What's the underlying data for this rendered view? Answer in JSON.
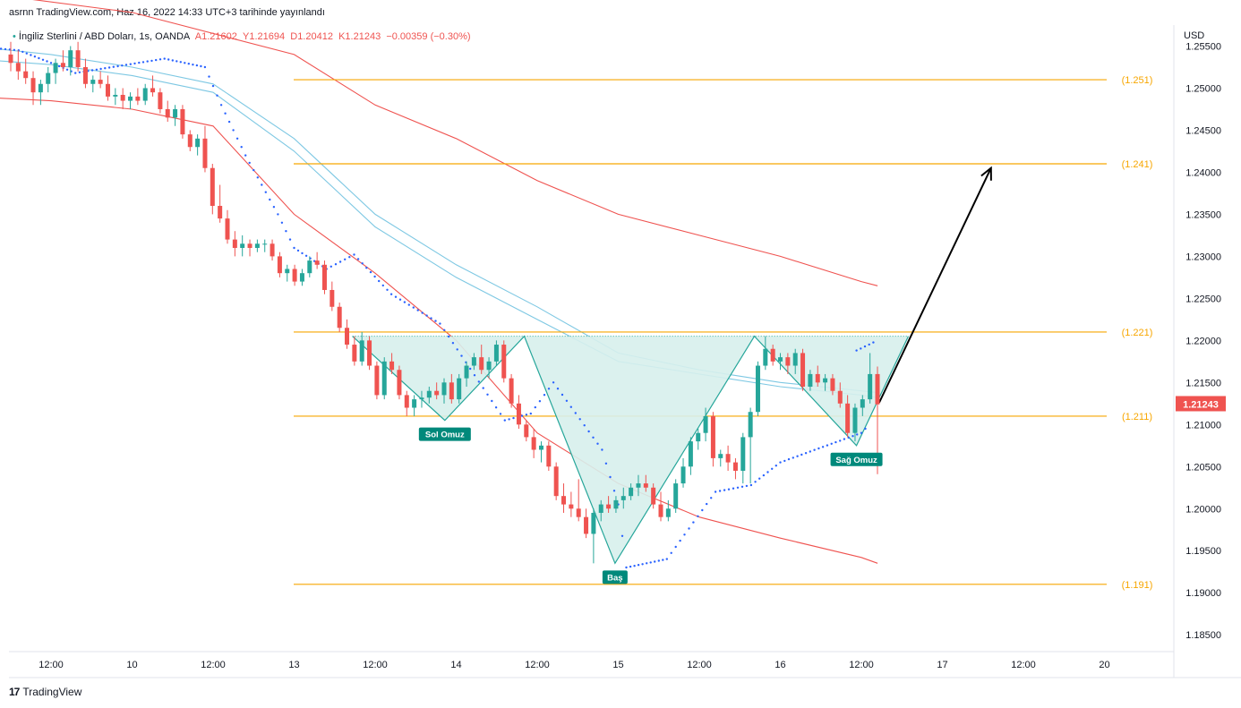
{
  "header": {
    "publish_text": "asrnn TradingView.com, Haz 16, 2022 14:33 UTC+3 tarihinde yayınlandı"
  },
  "symbol": {
    "name": "İngiliz Sterlini / ABD Doları, 1s, OANDA",
    "open": "A1.21602",
    "high": "Y1.21694",
    "low": "D1.20412",
    "close": "K1.21243",
    "change": "−0.00359 (−0.30%)"
  },
  "currency": "USD",
  "last_price": "1.21243",
  "footer": {
    "brand": "TradingView",
    "logo": "17"
  },
  "colors": {
    "up": "#26a69a",
    "down": "#ef5350",
    "level": "#f7a600",
    "ma_blue": "#7ec8e3",
    "ma_red": "#ef5350",
    "pattern_fill": "#d7efec",
    "pattern_stroke": "#26a69a",
    "sar": "#2962ff"
  },
  "chart_data": {
    "type": "candlestick",
    "y_range": [
      1.183,
      1.2575
    ],
    "y_ticks": [
      "1.25500",
      "1.25000",
      "1.24500",
      "1.24000",
      "1.23500",
      "1.23000",
      "1.22500",
      "1.22000",
      "1.21500",
      "1.21000",
      "1.20500",
      "1.20000",
      "1.19500",
      "1.19000",
      "1.18500"
    ],
    "x_ticks": [
      {
        "label": "12:00",
        "t": 0.5
      },
      {
        "label": "10",
        "t": 1.0
      },
      {
        "label": "12:00",
        "t": 1.5
      },
      {
        "label": "13",
        "t": 2.0
      },
      {
        "label": "12:00",
        "t": 2.5
      },
      {
        "label": "14",
        "t": 3.0
      },
      {
        "label": "12:00",
        "t": 3.5
      },
      {
        "label": "15",
        "t": 4.0
      },
      {
        "label": "12:00",
        "t": 4.5
      },
      {
        "label": "16",
        "t": 5.0
      },
      {
        "label": "12:00",
        "t": 5.5
      },
      {
        "label": "17",
        "t": 6.0
      },
      {
        "label": "12:00",
        "t": 6.5
      },
      {
        "label": "20",
        "t": 7.0
      }
    ],
    "levels": [
      {
        "value": 1.251,
        "label": "(1.251)"
      },
      {
        "value": 1.241,
        "label": "(1.241)"
      },
      {
        "value": 1.221,
        "label": "(1.221)"
      },
      {
        "value": 1.211,
        "label": "(1.211)"
      },
      {
        "value": 1.191,
        "label": "(1.191)"
      }
    ],
    "pattern_points": [
      {
        "t": 3.42,
        "v": 1.2204
      },
      {
        "t": 2.93,
        "v": 1.2105
      },
      {
        "t": 3.42,
        "v": 1.2205
      },
      {
        "t": 3.98,
        "v": 1.1935
      },
      {
        "t": 4.84,
        "v": 1.2205
      },
      {
        "t": 5.47,
        "v": 1.2075
      },
      {
        "t": 5.79,
        "v": 1.2205
      }
    ],
    "annotations": [
      {
        "text": "Sol Omuz",
        "t": 2.93,
        "v": 1.2105
      },
      {
        "text": "Baş",
        "t": 3.98,
        "v": 1.1935
      },
      {
        "text": "Sağ Omuz",
        "t": 5.47,
        "v": 1.2075
      }
    ],
    "target_arrow": {
      "from": {
        "t": 5.61,
        "v": 1.2126
      },
      "to": {
        "t": 6.3,
        "v": 1.2405
      }
    },
    "candles": [
      [
        1.254,
        1.2555,
        1.252,
        1.253
      ],
      [
        1.253,
        1.2545,
        1.251,
        1.252
      ],
      [
        1.252,
        1.2535,
        1.2505,
        1.2512
      ],
      [
        1.2512,
        1.252,
        1.248,
        1.2495
      ],
      [
        1.2495,
        1.251,
        1.248,
        1.2505
      ],
      [
        1.2505,
        1.2525,
        1.2495,
        1.2518
      ],
      [
        1.2518,
        1.2535,
        1.2505,
        1.253
      ],
      [
        1.253,
        1.2545,
        1.252,
        1.2525
      ],
      [
        1.2525,
        1.255,
        1.2515,
        1.2545
      ],
      [
        1.2545,
        1.2555,
        1.252,
        1.2525
      ],
      [
        1.2525,
        1.2535,
        1.25,
        1.2505
      ],
      [
        1.2505,
        1.2515,
        1.2495,
        1.251
      ],
      [
        1.251,
        1.252,
        1.25,
        1.2505
      ],
      [
        1.2505,
        1.2515,
        1.2485,
        1.249
      ],
      [
        1.249,
        1.25,
        1.248,
        1.2492
      ],
      [
        1.2492,
        1.25,
        1.2475,
        1.2485
      ],
      [
        1.2485,
        1.2495,
        1.2475,
        1.249
      ],
      [
        1.249,
        1.25,
        1.248,
        1.2485
      ],
      [
        1.2485,
        1.2505,
        1.248,
        1.25
      ],
      [
        1.25,
        1.2515,
        1.249,
        1.2495
      ],
      [
        1.2495,
        1.25,
        1.247,
        1.2475
      ],
      [
        1.2475,
        1.2485,
        1.246,
        1.2465
      ],
      [
        1.2465,
        1.248,
        1.2455,
        1.2475
      ],
      [
        1.2475,
        1.248,
        1.244,
        1.2445
      ],
      [
        1.2445,
        1.245,
        1.2425,
        1.243
      ],
      [
        1.243,
        1.2445,
        1.242,
        1.244
      ],
      [
        1.244,
        1.2455,
        1.24,
        1.2405
      ],
      [
        1.2405,
        1.241,
        1.235,
        1.236
      ],
      [
        1.236,
        1.2385,
        1.234,
        1.2345
      ],
      [
        1.2345,
        1.2355,
        1.2315,
        1.232
      ],
      [
        1.232,
        1.233,
        1.23,
        1.231
      ],
      [
        1.231,
        1.2325,
        1.23,
        1.2315
      ],
      [
        1.2315,
        1.232,
        1.23,
        1.231
      ],
      [
        1.231,
        1.232,
        1.2305,
        1.2315
      ],
      [
        1.2315,
        1.232,
        1.2305,
        1.2315
      ],
      [
        1.2315,
        1.232,
        1.2295,
        1.23
      ],
      [
        1.23,
        1.2305,
        1.2275,
        1.228
      ],
      [
        1.228,
        1.229,
        1.227,
        1.2285
      ],
      [
        1.2285,
        1.229,
        1.2265,
        1.227
      ],
      [
        1.227,
        1.2285,
        1.2265,
        1.228
      ],
      [
        1.228,
        1.23,
        1.2275,
        1.2295
      ],
      [
        1.2295,
        1.2305,
        1.2285,
        1.229
      ],
      [
        1.229,
        1.2295,
        1.2255,
        1.226
      ],
      [
        1.226,
        1.227,
        1.2235,
        1.224
      ],
      [
        1.224,
        1.2245,
        1.221,
        1.2215
      ],
      [
        1.2215,
        1.2225,
        1.219,
        1.2195
      ],
      [
        1.2195,
        1.2205,
        1.217,
        1.2175
      ],
      [
        1.2175,
        1.221,
        1.217,
        1.22
      ],
      [
        1.22,
        1.2205,
        1.2165,
        1.217
      ],
      [
        1.217,
        1.2175,
        1.213,
        1.2135
      ],
      [
        1.2135,
        1.218,
        1.213,
        1.2175
      ],
      [
        1.2175,
        1.2185,
        1.216,
        1.2165
      ],
      [
        1.2165,
        1.217,
        1.213,
        1.2135
      ],
      [
        1.2135,
        1.214,
        1.211,
        1.212
      ],
      [
        1.212,
        1.2135,
        1.211,
        1.213
      ],
      [
        1.213,
        1.214,
        1.212,
        1.2132
      ],
      [
        1.2132,
        1.2145,
        1.2125,
        1.214
      ],
      [
        1.214,
        1.215,
        1.213,
        1.2135
      ],
      [
        1.2135,
        1.2155,
        1.2125,
        1.215
      ],
      [
        1.215,
        1.216,
        1.2125,
        1.213
      ],
      [
        1.213,
        1.216,
        1.2125,
        1.2155
      ],
      [
        1.2155,
        1.2175,
        1.2145,
        1.217
      ],
      [
        1.217,
        1.2185,
        1.2165,
        1.218
      ],
      [
        1.218,
        1.2195,
        1.216,
        1.2165
      ],
      [
        1.2165,
        1.218,
        1.2155,
        1.2175
      ],
      [
        1.2175,
        1.22,
        1.217,
        1.2195
      ],
      [
        1.2195,
        1.22,
        1.215,
        1.2155
      ],
      [
        1.2155,
        1.216,
        1.212,
        1.2125
      ],
      [
        1.2125,
        1.2135,
        1.2095,
        1.21
      ],
      [
        1.21,
        1.2105,
        1.208,
        1.2085
      ],
      [
        1.2085,
        1.2095,
        1.206,
        1.207
      ],
      [
        1.207,
        1.208,
        1.2055,
        1.2075
      ],
      [
        1.2075,
        1.208,
        1.2045,
        1.205
      ],
      [
        1.205,
        1.2055,
        1.201,
        1.2015
      ],
      [
        1.2015,
        1.203,
        1.1995,
        1.2005
      ],
      [
        1.2005,
        1.202,
        1.199,
        1.2
      ],
      [
        1.2,
        1.2035,
        1.1985,
        1.199
      ],
      [
        1.199,
        1.2,
        1.1965,
        1.197
      ],
      [
        1.197,
        1.2,
        1.1935,
        1.1995
      ],
      [
        1.1995,
        1.201,
        1.1985,
        1.2005
      ],
      [
        1.2005,
        1.2015,
        1.1995,
        1.2
      ],
      [
        1.2,
        1.2015,
        1.1995,
        1.201
      ],
      [
        1.201,
        1.2025,
        1.2,
        1.2015
      ],
      [
        1.2015,
        1.203,
        1.201,
        1.2025
      ],
      [
        1.2025,
        1.204,
        1.2015,
        1.203
      ],
      [
        1.203,
        1.204,
        1.202,
        1.2025
      ],
      [
        1.2025,
        1.203,
        1.2,
        1.2005
      ],
      [
        1.2005,
        1.202,
        1.1985,
        1.199
      ],
      [
        1.199,
        1.201,
        1.1985,
        1.2
      ],
      [
        1.2,
        1.2035,
        1.1995,
        1.203
      ],
      [
        1.203,
        1.206,
        1.2025,
        1.205
      ],
      [
        1.205,
        1.2085,
        1.204,
        1.208
      ],
      [
        1.208,
        1.2095,
        1.207,
        1.209
      ],
      [
        1.209,
        1.212,
        1.208,
        1.211
      ],
      [
        1.211,
        1.2115,
        1.205,
        1.206
      ],
      [
        1.206,
        1.207,
        1.205,
        1.2065
      ],
      [
        1.2065,
        1.2075,
        1.2045,
        1.2055
      ],
      [
        1.2055,
        1.206,
        1.2035,
        1.2045
      ],
      [
        1.2045,
        1.209,
        1.203,
        1.2085
      ],
      [
        1.2085,
        1.212,
        1.203,
        1.2115
      ],
      [
        1.2115,
        1.2175,
        1.211,
        1.217
      ],
      [
        1.217,
        1.2205,
        1.2165,
        1.219
      ],
      [
        1.219,
        1.2195,
        1.217,
        1.2175
      ],
      [
        1.2175,
        1.2185,
        1.2165,
        1.218
      ],
      [
        1.218,
        1.2185,
        1.216,
        1.217
      ],
      [
        1.217,
        1.219,
        1.216,
        1.2185
      ],
      [
        1.2185,
        1.219,
        1.214,
        1.2145
      ],
      [
        1.2145,
        1.2165,
        1.214,
        1.216
      ],
      [
        1.216,
        1.217,
        1.2145,
        1.215
      ],
      [
        1.215,
        1.216,
        1.214,
        1.2155
      ],
      [
        1.2155,
        1.216,
        1.2135,
        1.214
      ],
      [
        1.214,
        1.215,
        1.212,
        1.2125
      ],
      [
        1.2125,
        1.2135,
        1.2085,
        1.209
      ],
      [
        1.209,
        1.2125,
        1.208,
        1.212
      ],
      [
        1.212,
        1.2135,
        1.211,
        1.213
      ],
      [
        1.213,
        1.2185,
        1.2125,
        1.216
      ],
      [
        1.216,
        1.2169,
        1.2041,
        1.2124
      ]
    ],
    "ma_blue_1": [
      [
        0,
        1.255
      ],
      [
        0.5,
        1.254
      ],
      [
        1.0,
        1.2525
      ],
      [
        1.5,
        1.2505
      ],
      [
        2.0,
        1.244
      ],
      [
        2.5,
        1.235
      ],
      [
        3.0,
        1.229
      ],
      [
        3.5,
        1.224
      ],
      [
        4.0,
        1.2185
      ],
      [
        4.5,
        1.2165
      ],
      [
        5.0,
        1.215
      ],
      [
        5.5,
        1.214
      ],
      [
        5.6,
        1.2138
      ]
    ],
    "ma_blue_2": [
      [
        0,
        1.2535
      ],
      [
        0.5,
        1.2528
      ],
      [
        1.0,
        1.2515
      ],
      [
        1.5,
        1.2495
      ],
      [
        2.0,
        1.2425
      ],
      [
        2.5,
        1.2335
      ],
      [
        3.0,
        1.2275
      ],
      [
        3.5,
        1.2225
      ],
      [
        4.0,
        1.2175
      ],
      [
        4.5,
        1.216
      ],
      [
        5.0,
        1.2145
      ],
      [
        5.5,
        1.2135
      ],
      [
        5.6,
        1.2132
      ]
    ],
    "ma_red_long": [
      [
        0,
        1.2615
      ],
      [
        1.0,
        1.259
      ],
      [
        2.0,
        1.254
      ],
      [
        2.5,
        1.248
      ],
      [
        3.0,
        1.244
      ],
      [
        3.5,
        1.239
      ],
      [
        4.0,
        1.235
      ],
      [
        4.5,
        1.2325
      ],
      [
        5.0,
        1.23
      ],
      [
        5.5,
        1.227
      ],
      [
        5.6,
        1.2265
      ]
    ],
    "ma_red_short": [
      [
        0,
        1.249
      ],
      [
        0.5,
        1.2485
      ],
      [
        1.0,
        1.2475
      ],
      [
        1.5,
        1.2455
      ],
      [
        2.0,
        1.235
      ],
      [
        2.5,
        1.228
      ],
      [
        3.0,
        1.22
      ],
      [
        3.5,
        1.209
      ],
      [
        4.0,
        1.203
      ],
      [
        4.5,
        1.199
      ],
      [
        5.0,
        1.1965
      ],
      [
        5.5,
        1.1942
      ],
      [
        5.6,
        1.1935
      ]
    ],
    "sar": [
      [
        0,
        1.255
      ],
      [
        0.3,
        1.2545
      ],
      [
        0.5,
        1.253
      ],
      [
        0.65,
        1.2518
      ],
      [
        1.2,
        1.2535
      ],
      [
        1.45,
        1.2525
      ],
      [
        1.55,
        1.248
      ],
      [
        1.7,
        1.242
      ],
      [
        1.9,
        1.235
      ],
      [
        2.0,
        1.231
      ],
      [
        2.2,
        1.2285
      ],
      [
        2.37,
        1.2302
      ],
      [
        2.6,
        1.2255
      ],
      [
        2.9,
        1.222
      ],
      [
        3.3,
        1.2105
      ],
      [
        3.46,
        1.2113
      ],
      [
        3.6,
        1.215
      ],
      [
        3.9,
        1.207
      ],
      [
        4.0,
        1.2005
      ],
      [
        4.05,
        1.193
      ],
      [
        4.3,
        1.194
      ],
      [
        4.6,
        1.202
      ],
      [
        4.82,
        1.2028
      ],
      [
        5.0,
        1.2055
      ],
      [
        5.5,
        1.209
      ],
      [
        5.55,
        1.21
      ],
      [
        5.47,
        1.2188
      ],
      [
        5.6,
        1.22
      ]
    ]
  }
}
